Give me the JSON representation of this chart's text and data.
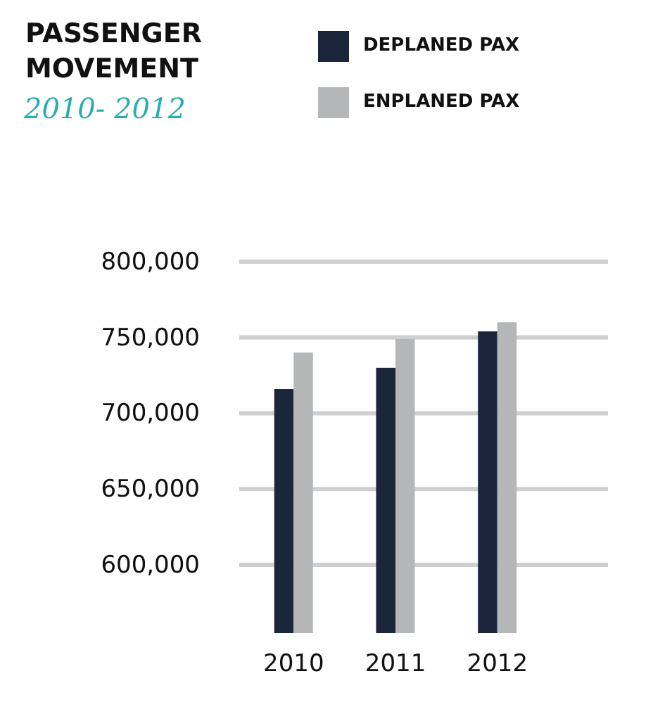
{
  "chart_data": {
    "type": "bar",
    "title": "PASSENGER\nMOVEMENT",
    "subtitle": "2010- 2012",
    "categories": [
      "2010",
      "2011",
      "2012"
    ],
    "series": [
      {
        "name": "DEPLANED PAX",
        "color": "#1b263a",
        "values": [
          716000,
          730000,
          754000
        ]
      },
      {
        "name": "ENPLANED PAX",
        "color": "#b5b6b8",
        "values": [
          740000,
          749000,
          760000
        ]
      }
    ],
    "ylim": [
      555000,
      800000
    ],
    "yticks": [
      {
        "value": 600000,
        "label": "600,000"
      },
      {
        "value": 650000,
        "label": "650,000"
      },
      {
        "value": 700000,
        "label": "700,000"
      },
      {
        "value": 750000,
        "label": "750,000"
      },
      {
        "value": 800000,
        "label": "800,000"
      }
    ],
    "grid": "y",
    "legend": "top"
  }
}
